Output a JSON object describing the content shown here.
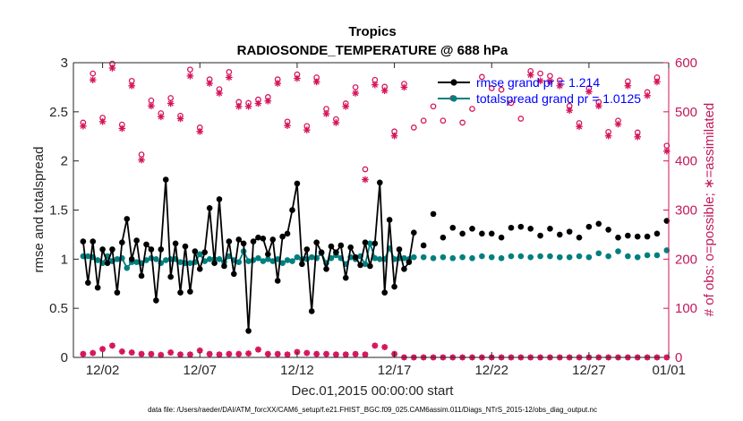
{
  "chart_data": {
    "type": "line",
    "title": "Tropics",
    "subtitle": "RADIOSONDE_TEMPERATURE @ 688 hPa",
    "xlabel": "Dec.01,2015 00:00:00 start",
    "ylabel": "rmse and totalspread",
    "ylabel_right": "# of obs: o=possible; ∗=assimilated",
    "footnote": "data file: /Users/raeder/DAI/ATM_forcXX/CAM6_setup/f.e21.FHIST_BGC.f09_025.CAM6assim.011/Diags_NTrS_2015-12/obs_diag_output.nc",
    "xlim": [
      0.5,
      31.1
    ],
    "ylim": [
      0,
      3
    ],
    "ylim_right": [
      0,
      600
    ],
    "yticks": [
      0,
      0.5,
      1,
      1.5,
      2,
      2.5,
      3
    ],
    "yticks_right": [
      0,
      100,
      200,
      300,
      400,
      500,
      600
    ],
    "xticks": [
      {
        "day": 2,
        "label": "12/02"
      },
      {
        "day": 7,
        "label": "12/07"
      },
      {
        "day": 12,
        "label": "12/12"
      },
      {
        "day": 17,
        "label": "12/17"
      },
      {
        "day": 22,
        "label": "12/22"
      },
      {
        "day": 27,
        "label": "12/27"
      },
      {
        "day": 32,
        "label": "01/01"
      }
    ],
    "legend": [
      {
        "name": "rmse grand pr = 1.214",
        "color": "#000000"
      },
      {
        "name": "totalspread grand pr = 1.0125",
        "color": "#007f7f"
      }
    ],
    "colors": {
      "rmse": "#000000",
      "spread": "#007f7f",
      "obs": "#d6135a"
    },
    "x_dense": [
      1.0,
      1.25,
      1.5,
      1.75,
      2.0,
      2.25,
      2.5,
      2.75,
      3.0,
      3.25,
      3.5,
      3.75,
      4.0,
      4.25,
      4.5,
      4.75,
      5.0,
      5.25,
      5.5,
      5.75,
      6.0,
      6.25,
      6.5,
      6.75,
      7.0,
      7.25,
      7.5,
      7.75,
      8.0,
      8.25,
      8.5,
      8.75,
      9.0,
      9.25,
      9.5,
      9.75,
      10.0,
      10.25,
      10.5,
      10.75,
      11.0,
      11.25,
      11.5,
      11.75,
      12.0,
      12.25,
      12.5,
      12.75,
      13.0,
      13.25,
      13.5,
      13.75,
      14.0,
      14.25,
      14.5,
      14.75,
      15.0,
      15.25,
      15.5,
      15.75,
      16.0,
      16.25,
      16.5,
      16.75,
      17.0,
      17.25,
      17.5,
      17.75,
      18.0
    ],
    "rmse_dense": [
      1.18,
      0.76,
      1.18,
      0.71,
      1.1,
      0.96,
      1.1,
      0.66,
      1.17,
      1.41,
      1.0,
      1.19,
      0.83,
      1.15,
      1.1,
      0.58,
      1.1,
      1.81,
      0.82,
      1.16,
      0.66,
      1.13,
      0.67,
      1.08,
      0.9,
      1.07,
      1.52,
      0.96,
      1.61,
      0.93,
      1.18,
      0.85,
      1.2,
      1.16,
      0.27,
      1.18,
      1.22,
      1.21,
      1.05,
      1.2,
      0.78,
      1.23,
      1.26,
      1.5,
      1.77,
      0.95,
      1.1,
      0.47,
      1.17,
      1.07,
      0.9,
      1.13,
      1.07,
      1.14,
      0.81,
      1.12,
      1.02,
      0.94,
      1.17,
      0.93,
      1.16,
      1.78,
      0.66,
      1.4,
      0.72,
      1.1,
      0.9,
      0.97,
      1.27
    ],
    "spread_dense": [
      1.03,
      1.03,
      1.02,
      0.99,
      0.96,
      1.03,
      0.98,
      1.0,
      1.01,
      0.91,
      0.97,
      0.97,
      0.96,
      0.99,
      1.01,
      1.0,
      0.96,
      0.99,
      1.0,
      1.0,
      0.97,
      0.96,
      0.96,
      0.97,
      1.05,
      0.98,
      1.0,
      1.0,
      1.0,
      0.97,
      1.03,
      0.99,
      0.97,
      1.08,
      0.98,
      0.99,
      1.01,
      0.98,
      1.0,
      0.98,
      1.0,
      0.96,
      0.99,
      0.98,
      1.02,
      1.0,
      1.0,
      1.02,
      1.01,
      1.06,
      0.96,
      1.01,
      1.04,
      1.01,
      0.95,
      1.02,
      1.0,
      1.03,
      0.95,
      1.16,
      1.01,
      1.0,
      1.0,
      1.11,
      1.0,
      1.01,
      1.01,
      1.0,
      1.02
    ],
    "x_sparse": [
      18.5,
      19.0,
      19.5,
      20.0,
      20.5,
      21.0,
      21.5,
      22.0,
      22.5,
      23.0,
      23.5,
      24.0,
      24.5,
      25.0,
      25.5,
      26.0,
      26.5,
      27.0,
      27.5,
      28.0,
      28.5,
      29.0,
      29.5,
      30.0,
      30.5,
      31.0
    ],
    "rmse_sparse": [
      1.14,
      1.46,
      1.22,
      1.32,
      1.26,
      1.31,
      1.26,
      1.26,
      1.22,
      1.32,
      1.33,
      1.31,
      1.24,
      1.31,
      1.25,
      1.28,
      1.22,
      1.33,
      1.36,
      1.3,
      1.22,
      1.24,
      1.23,
      1.23,
      1.26,
      1.39
    ],
    "spread_sparse": [
      1.02,
      1.01,
      1.02,
      1.01,
      1.02,
      1.01,
      1.03,
      1.02,
      1.01,
      1.03,
      1.03,
      1.02,
      1.03,
      1.03,
      1.02,
      1.02,
      1.03,
      1.02,
      1.06,
      1.03,
      1.08,
      1.03,
      1.02,
      1.04,
      1.04,
      1.09
    ],
    "obs_x": [
      1,
      1.5,
      2,
      2.5,
      3,
      3.5,
      4,
      4.5,
      5,
      5.5,
      6,
      6.5,
      7,
      7.5,
      8,
      8.5,
      9,
      9.5,
      10,
      10.5,
      11,
      11.5,
      12,
      12.5,
      13,
      13.5,
      14,
      14.5,
      15,
      15.5,
      16,
      16.5,
      17,
      17.5,
      18,
      18.5,
      19,
      19.5,
      20,
      20.5,
      21,
      21.5,
      22,
      22.5,
      23,
      23.5,
      24,
      24.5,
      25,
      25.5,
      26,
      26.5,
      27,
      27.5,
      28,
      28.5,
      29,
      29.5,
      30,
      30.5,
      31
    ],
    "obs_possible": [
      478,
      578,
      488,
      598,
      474,
      563,
      413,
      523,
      497,
      528,
      492,
      586,
      468,
      566,
      546,
      581,
      520,
      518,
      525,
      530,
      566,
      480,
      576,
      471,
      570,
      506,
      485,
      517,
      550,
      383,
      565,
      551,
      460,
      557,
      468,
      482,
      511,
      482,
      528,
      478,
      506,
      571,
      548,
      545,
      518,
      486,
      583,
      578,
      573,
      564,
      512,
      477,
      548,
      520,
      459,
      482,
      562,
      458,
      540,
      570,
      431
    ],
    "obs_assim": [
      471,
      565,
      480,
      589,
      466,
      553,
      402,
      512,
      490,
      517,
      486,
      573,
      460,
      558,
      538,
      570,
      511,
      511,
      517,
      522,
      558,
      472,
      568,
      463,
      561,
      496,
      478,
      511,
      538,
      362,
      555,
      543,
      451,
      550,
      0,
      0,
      0,
      0,
      0,
      0,
      0,
      0,
      0,
      0,
      0,
      0,
      575,
      563,
      562,
      553,
      503,
      470,
      541,
      512,
      451,
      475,
      553,
      449,
      533,
      561,
      420
    ],
    "obs_low": [
      7,
      9,
      17,
      24,
      12,
      10,
      7,
      7,
      5,
      10,
      6,
      6,
      14,
      7,
      6,
      7,
      7,
      8,
      16,
      7,
      7,
      6,
      11,
      9,
      7,
      7,
      6,
      6,
      7,
      6,
      24,
      21,
      7,
      0,
      0,
      0,
      0,
      0,
      0,
      0,
      0,
      0,
      0,
      0,
      0,
      0,
      0,
      0,
      0,
      0,
      0,
      0,
      0,
      0,
      0,
      0,
      0,
      0,
      0,
      0,
      0
    ]
  }
}
